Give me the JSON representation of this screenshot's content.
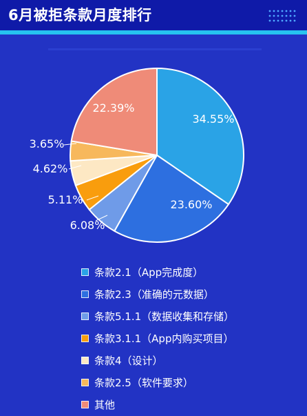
{
  "header": {
    "title": "6月被拒条款月度排行"
  },
  "colors": {
    "background": "#2233c4",
    "header": "#0f1aa8",
    "accent": "#26c3ef"
  },
  "chart_data": {
    "type": "pie",
    "title": "6月被拒条款月度排行",
    "start_angle_deg": 0,
    "direction": "clockwise",
    "legend_position": "bottom",
    "slices": [
      {
        "label": "条款2.1（App完成度）",
        "value": 34.55,
        "value_label": "34.55%",
        "color": "#2aa3e6"
      },
      {
        "label": "条款2.3（准确的元数据）",
        "value": 23.6,
        "value_label": "23.60%",
        "color": "#2d6fe0"
      },
      {
        "label": "条款5.1.1（数据收集和存储）",
        "value": 6.08,
        "value_label": "6.08%",
        "color": "#6f9be8"
      },
      {
        "label": "条款3.1.1（App内购买项目）",
        "value": 5.11,
        "value_label": "5.11%",
        "color": "#f99d0d"
      },
      {
        "label": "条款4（设计）",
        "value": 4.62,
        "value_label": "4.62%",
        "color": "#fde8c4"
      },
      {
        "label": "条款2.5（软件要求）",
        "value": 3.65,
        "value_label": "3.65%",
        "color": "#f7b85c"
      },
      {
        "label": "其他",
        "value": 22.39,
        "value_label": "22.39%",
        "color": "#ef8b78"
      }
    ]
  }
}
